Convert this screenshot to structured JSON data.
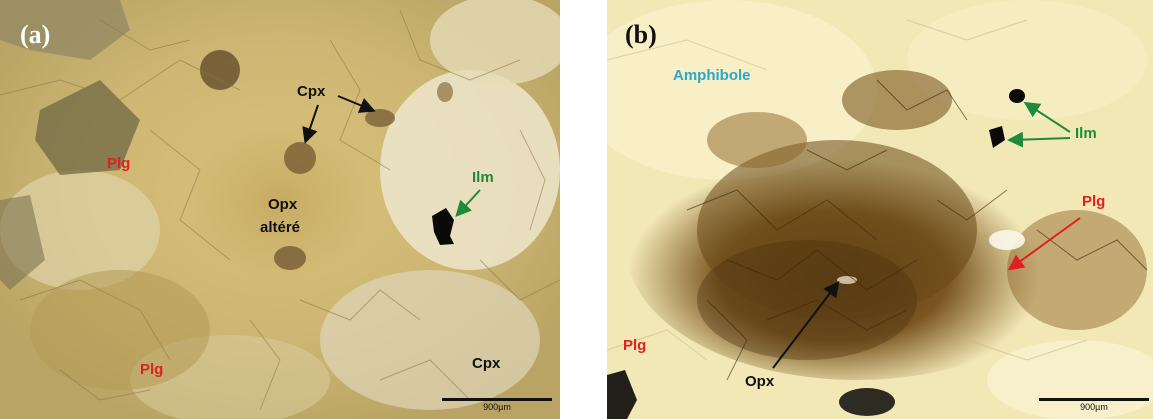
{
  "panel_a": {
    "letter": "(a)",
    "labels": {
      "cpx_top": "Cpx",
      "plg_upper": "Plg",
      "opx_line1": "Opx",
      "opx_line2": "altéré",
      "ilm": "Ilm",
      "plg_lower": "Plg",
      "cpx_lower": "Cpx"
    },
    "scale": "900µm"
  },
  "panel_b": {
    "letter": "(b)",
    "labels": {
      "amphibole": "Amphibole",
      "ilm": "Ilm",
      "plg_right": "Plg",
      "plg_left": "Plg",
      "opx": "Opx"
    },
    "scale": "900µm"
  },
  "colors": {
    "label_dark": "#111111",
    "label_red": "#e02020",
    "label_green": "#1e8a3a",
    "label_cyan": "#2aa8c8",
    "letter_white": "#ffffff",
    "letter_black": "#111111"
  }
}
